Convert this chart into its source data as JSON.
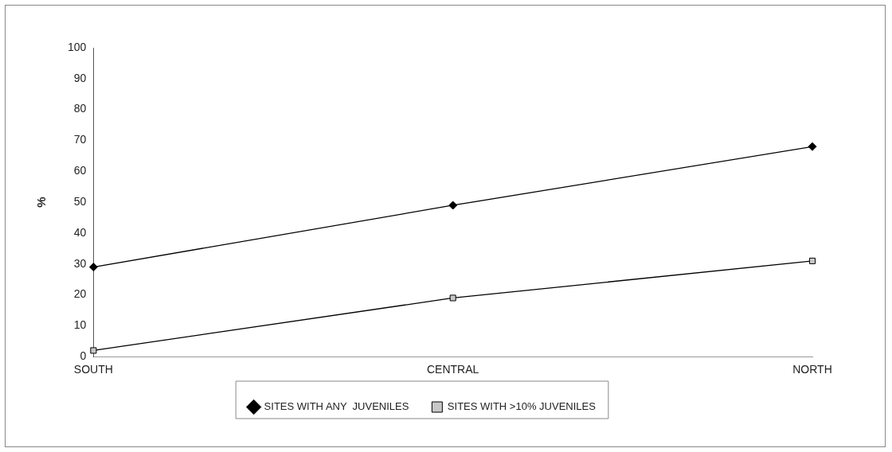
{
  "chart_data": {
    "type": "line",
    "ylabel": "%",
    "categories": [
      "SOUTH",
      "CENTRAL",
      "NORTH"
    ],
    "series": [
      {
        "name": "SITES WITH ANY  JUVENILES",
        "color": "#000000",
        "marker": "diamond",
        "values": [
          29,
          49,
          68
        ]
      },
      {
        "name": "SITES WITH >10% JUVENILES",
        "color": "#000000",
        "marker": "square",
        "values": [
          2,
          19,
          31
        ]
      }
    ],
    "ylim": [
      0,
      100
    ],
    "yticks": [
      0,
      10,
      20,
      30,
      40,
      50,
      60,
      70,
      80,
      90,
      100
    ],
    "legend": "bottom",
    "grid": false,
    "line_style": "solid"
  }
}
